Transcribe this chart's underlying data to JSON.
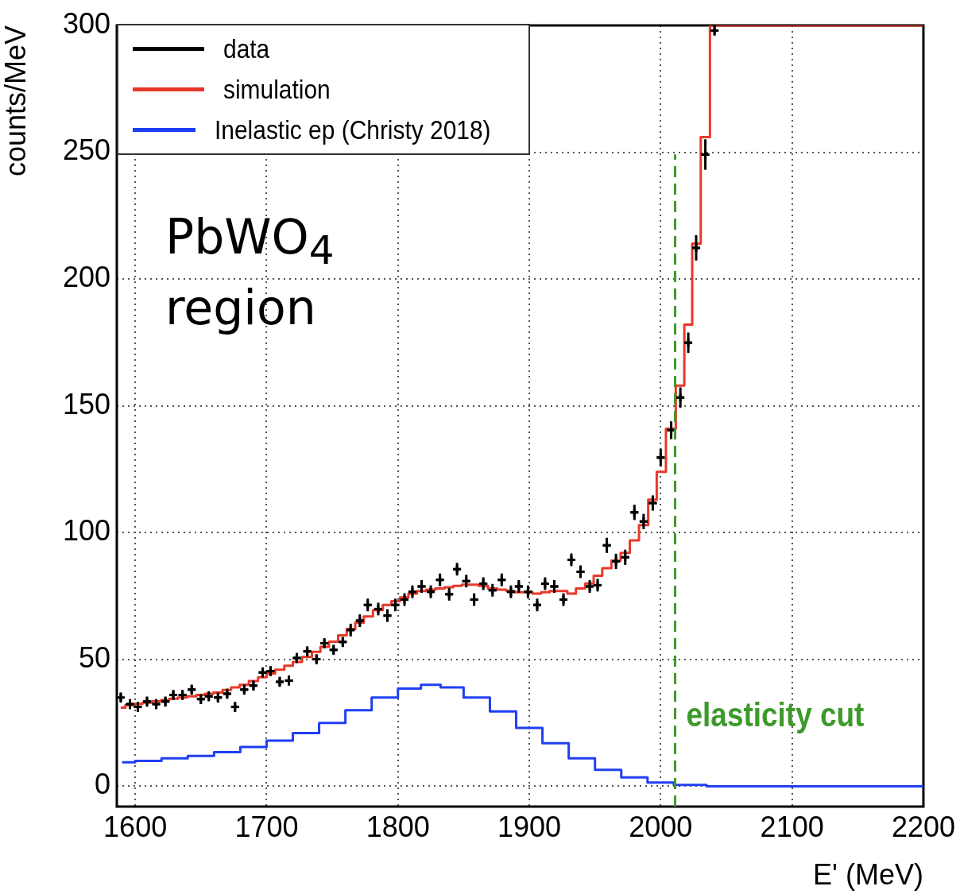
{
  "chart_data": {
    "type": "step",
    "xlabel": "E' (MeV)",
    "ylabel": "counts/MeV",
    "xlim": [
      1586,
      2200
    ],
    "ylim": [
      -8,
      300
    ],
    "xticks": [
      1600,
      1700,
      1800,
      1900,
      2000,
      2100,
      2200
    ],
    "yticks": [
      0,
      50,
      100,
      150,
      200,
      250,
      300
    ],
    "grid": true,
    "legend": "top left",
    "annotations": [
      "PbWO$_{4}$ region"
    ],
    "ref_lines": [
      {
        "axis": "x",
        "value": 2011,
        "label": "elasticity cut",
        "color": "#3d9a2a",
        "line_style": "dashed"
      }
    ],
    "series": [
      {
        "name": "data",
        "type": "scatter",
        "color": "#000000",
        "x": [
          1589,
          1596,
          1602,
          1609,
          1616,
          1623,
          1629,
          1636,
          1643,
          1650,
          1656,
          1663,
          1670,
          1676,
          1683,
          1690,
          1697,
          1703,
          1710,
          1717,
          1723,
          1731,
          1738,
          1744,
          1751,
          1758,
          1764,
          1771,
          1777,
          1785,
          1792,
          1798,
          1805,
          1811,
          1818,
          1825,
          1832,
          1839,
          1845,
          1852,
          1858,
          1865,
          1872,
          1879,
          1886,
          1892,
          1899,
          1906,
          1912,
          1919,
          1926,
          1932,
          1939,
          1946,
          1952,
          1959,
          1966,
          1973,
          1980,
          1987,
          1994,
          2000,
          2008,
          2015,
          2021,
          2027,
          2034,
          2041
        ],
        "values": [
          35,
          32.4,
          31.3,
          33.4,
          32.4,
          33.4,
          36,
          36,
          38.1,
          34.4,
          35.5,
          35,
          36.5,
          31.3,
          38.1,
          39.7,
          44.9,
          45.4,
          41.2,
          41.7,
          50.6,
          53.2,
          50.1,
          56.4,
          53.8,
          56.9,
          61.6,
          65.3,
          71.5,
          69.9,
          67.3,
          71.5,
          73.6,
          76.7,
          78.8,
          76.7,
          81.4,
          75.7,
          85.6,
          80.9,
          73.6,
          79.9,
          77.3,
          81.4,
          76.7,
          78.8,
          76.7,
          71.5,
          79.9,
          78.8,
          73.6,
          89.3,
          84.6,
          78.8,
          79.3,
          95,
          88.7,
          90.3,
          108,
          104.4,
          111.7,
          129.6,
          140.4,
          153.3,
          174.9,
          212.3,
          249.1,
          298
        ],
        "errors": [
          2,
          2,
          2,
          2,
          2,
          2,
          2,
          2,
          2,
          2,
          2,
          2,
          2,
          2,
          2,
          2,
          2,
          2,
          2,
          2,
          2,
          2,
          2,
          2,
          2,
          2,
          2.5,
          2.5,
          2.5,
          2.5,
          2.5,
          2.5,
          2.5,
          2.5,
          2.5,
          2.5,
          2.5,
          2.5,
          2.5,
          2.5,
          2.5,
          2.5,
          2.5,
          2.5,
          2.5,
          2.5,
          2.5,
          2.5,
          2.5,
          2.5,
          2.5,
          2.5,
          2.5,
          2.5,
          2.5,
          3,
          3,
          3,
          3,
          3,
          3,
          3.5,
          3.5,
          4,
          4,
          5,
          6,
          2
        ],
        "xerrors": [
          null,
          3,
          3,
          3,
          3,
          3,
          3,
          3,
          3,
          3,
          3,
          3,
          3,
          3,
          3,
          3,
          3,
          3,
          3,
          3,
          3,
          3,
          3,
          3,
          3,
          3,
          3,
          3,
          3,
          3,
          3,
          3,
          3,
          3,
          3,
          3,
          3,
          3,
          3,
          3,
          3,
          3,
          3,
          3,
          3,
          3,
          3,
          3,
          3,
          3,
          3,
          3,
          3,
          3,
          3,
          3,
          3,
          3,
          3,
          3,
          3,
          3,
          3,
          3,
          3,
          3,
          3,
          3
        ]
      },
      {
        "name": "simulation",
        "color": "#e8392a",
        "x": [
          1589,
          1596,
          1602,
          1609,
          1616,
          1623,
          1629,
          1636,
          1643,
          1650,
          1656,
          1663,
          1670,
          1676,
          1683,
          1690,
          1697,
          1703,
          1710,
          1717,
          1723,
          1731,
          1738,
          1744,
          1751,
          1758,
          1764,
          1771,
          1777,
          1785,
          1792,
          1798,
          1805,
          1811,
          1818,
          1825,
          1832,
          1839,
          1845,
          1852,
          1858,
          1865,
          1872,
          1879,
          1886,
          1892,
          1899,
          1906,
          1912,
          1919,
          1926,
          1932,
          1939,
          1946,
          1952,
          1959,
          1966,
          1973,
          1980,
          1987,
          1994,
          2000,
          2008,
          2015,
          2021,
          2027,
          2034,
          2041,
          2200
        ],
        "values": [
          31,
          32,
          32.5,
          33,
          33.5,
          34,
          34.5,
          35,
          35.5,
          36,
          36.5,
          37,
          38,
          39,
          40,
          41.5,
          43,
          44.5,
          46,
          47.5,
          49,
          51,
          53,
          55,
          57,
          59.5,
          62,
          64.5,
          67,
          69.5,
          71.5,
          73,
          74.5,
          76,
          77,
          77.5,
          78,
          78.5,
          79,
          79.5,
          79.5,
          79,
          78,
          77.5,
          77,
          76.5,
          76.5,
          76,
          76.5,
          77,
          77,
          76,
          78,
          80,
          83,
          86,
          89,
          92,
          97,
          103,
          113,
          124,
          141,
          158,
          182,
          214,
          256,
          300,
          300
        ]
      },
      {
        "name": "Inelastic ep (Christy 2018)",
        "type": "step",
        "color": "#1f3ff5",
        "x": [
          1590,
          1610,
          1630,
          1650,
          1670,
          1690,
          1710,
          1730,
          1750,
          1770,
          1790,
          1810,
          1825,
          1840,
          1860,
          1880,
          1900,
          1920,
          1940,
          1960,
          1980,
          2000,
          2020,
          2050,
          2200
        ],
        "values": [
          9.5,
          10,
          11,
          12,
          13.5,
          15.5,
          18,
          21,
          25,
          30,
          35,
          38.5,
          40,
          39,
          35,
          29.5,
          23,
          17,
          11,
          6.5,
          3.5,
          1.5,
          0.5,
          0,
          0
        ]
      }
    ]
  }
}
